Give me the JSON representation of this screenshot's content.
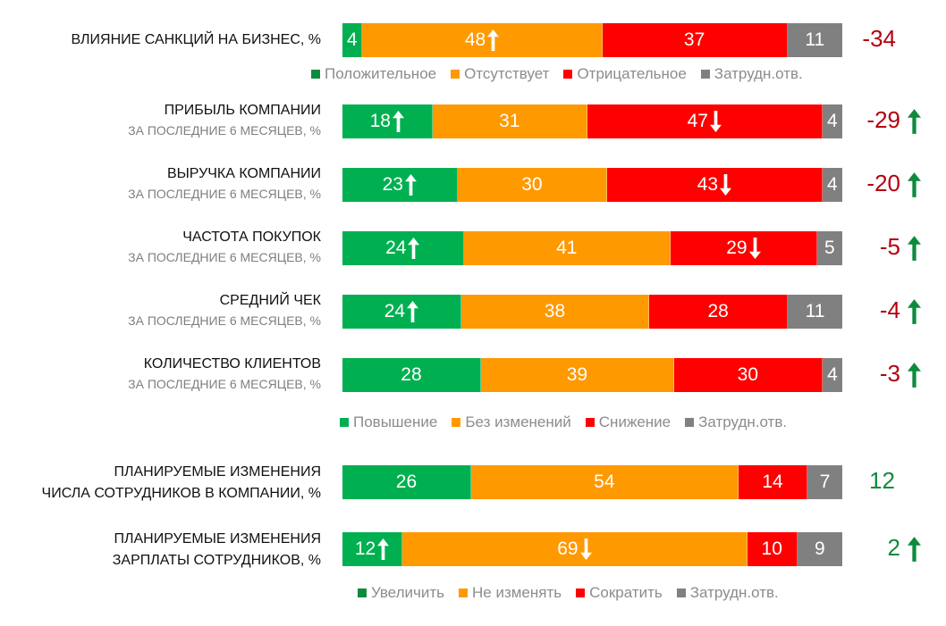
{
  "colors": {
    "green": "#00b050",
    "green_dark": "#0e8a3e",
    "orange": "#ff9900",
    "red": "#ff0000",
    "gray": "#808080",
    "delta_negative": "#b3000f",
    "delta_positive": "#0e8a3e"
  },
  "chart_data": {
    "type": "bar",
    "stacked": true,
    "orientation": "horizontal",
    "rows": [
      {
        "title": "ВЛИЯНИЕ САНКЦИЙ НА БИЗНЕС, %",
        "subtitle": "",
        "values": [
          4,
          48,
          37,
          11
        ],
        "arrows": [
          "",
          "up",
          "",
          ""
        ],
        "delta": "-34",
        "delta_arrow": "",
        "delta_color": "negative"
      },
      {
        "title": "ПРИБЫЛЬ КОМПАНИИ",
        "subtitle": "ЗА ПОСЛЕДНИЕ 6 МЕСЯЦЕВ, %",
        "values": [
          18,
          31,
          47,
          4
        ],
        "arrows": [
          "up",
          "",
          "down",
          ""
        ],
        "delta": "-29",
        "delta_arrow": "up",
        "delta_color": "negative"
      },
      {
        "title": "ВЫРУЧКА КОМПАНИИ",
        "subtitle": "ЗА ПОСЛЕДНИЕ 6 МЕСЯЦЕВ, %",
        "values": [
          23,
          30,
          43,
          4
        ],
        "arrows": [
          "up",
          "",
          "down",
          ""
        ],
        "delta": "-20",
        "delta_arrow": "up",
        "delta_color": "negative"
      },
      {
        "title": "ЧАСТОТА ПОКУПОК",
        "subtitle": "ЗА ПОСЛЕДНИЕ 6 МЕСЯЦЕВ, %",
        "values": [
          24,
          41,
          29,
          5
        ],
        "arrows": [
          "up",
          "",
          "down",
          ""
        ],
        "delta": "-5",
        "delta_arrow": "up",
        "delta_color": "negative"
      },
      {
        "title": "СРЕДНИЙ ЧЕК",
        "subtitle": "ЗА ПОСЛЕДНИЕ 6 МЕСЯЦЕВ, %",
        "values": [
          24,
          38,
          28,
          11
        ],
        "arrows": [
          "up",
          "",
          "",
          ""
        ],
        "delta": "-4",
        "delta_arrow": "up",
        "delta_color": "negative"
      },
      {
        "title": "КОЛИЧЕСТВО КЛИЕНТОВ",
        "subtitle": "ЗА ПОСЛЕДНИЕ 6 МЕСЯЦЕВ, %",
        "values": [
          28,
          39,
          30,
          4
        ],
        "arrows": [
          "",
          "",
          "",
          ""
        ],
        "delta": "-3",
        "delta_arrow": "up",
        "delta_color": "negative"
      },
      {
        "title": "ПЛАНИРУЕМЫЕ ИЗМЕНЕНИЯ",
        "subtitle": "ЧИСЛА СОТРУДНИКОВ В КОМПАНИИ, %",
        "values": [
          26,
          54,
          14,
          7
        ],
        "arrows": [
          "",
          "",
          "",
          ""
        ],
        "delta": "12",
        "delta_arrow": "",
        "delta_color": "positive"
      },
      {
        "title": "ПЛАНИРУЕМЫЕ ИЗМЕНЕНИЯ",
        "subtitle": "ЗАРПЛАТЫ СОТРУДНИКОВ, %",
        "values": [
          12,
          69,
          10,
          9
        ],
        "arrows": [
          "up",
          "down",
          "",
          ""
        ],
        "delta": "2",
        "delta_arrow": "up",
        "delta_color": "positive"
      }
    ],
    "legends": [
      [
        "Положительное",
        "Отсутствует",
        "Отрицательное",
        "Затрудн.отв."
      ],
      [
        "Повышение",
        "Без изменений",
        "Снижение",
        "Затрудн.отв."
      ],
      [
        "Увеличить",
        "Не изменять",
        "Сократить",
        "Затрудн.отв."
      ]
    ]
  }
}
